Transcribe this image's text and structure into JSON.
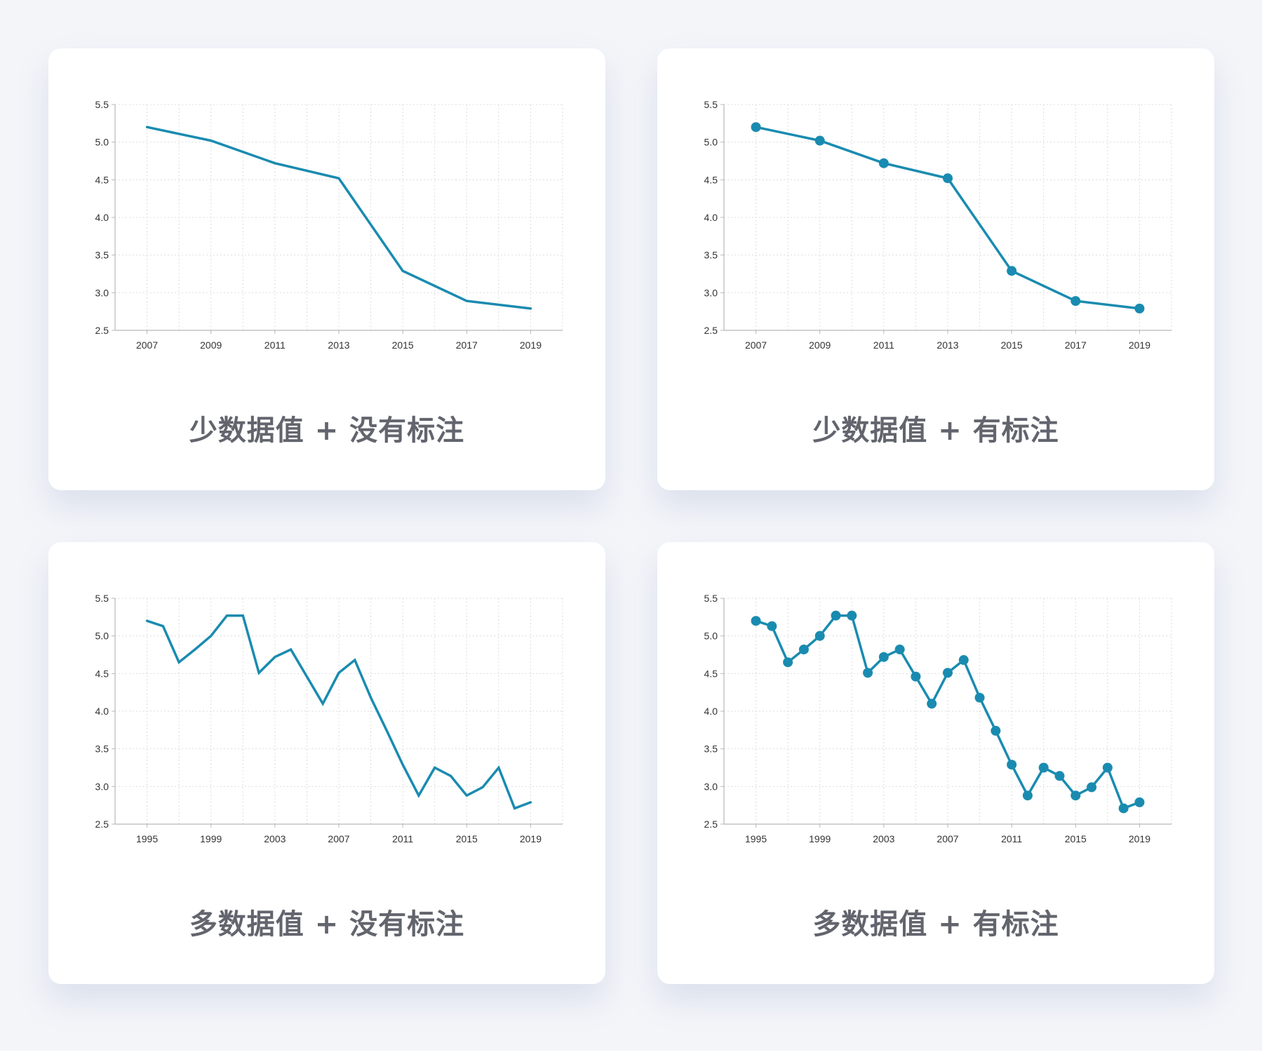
{
  "theme": {
    "line_color": "#1a8bb0",
    "background": "#f3f5f9",
    "card_background": "#ffffff",
    "title_color": "#62656d"
  },
  "panels": [
    {
      "title": "少数据值 + 没有标注"
    },
    {
      "title": "少数据值 + 有标注"
    },
    {
      "title": "多数据值 + 没有标注"
    },
    {
      "title": "多数据值 + 有标注"
    }
  ],
  "chart_data": [
    {
      "type": "line",
      "title": "少数据值 + 没有标注",
      "markers": false,
      "grid": true,
      "x": [
        2007,
        2009,
        2011,
        2013,
        2015,
        2017,
        2019
      ],
      "values": [
        5.2,
        5.02,
        4.72,
        4.52,
        3.29,
        2.89,
        2.79
      ],
      "xlim": [
        2006,
        2020
      ],
      "ylim": [
        2.5,
        5.5
      ],
      "x_ticks": [
        "2007",
        "2009",
        "2011",
        "2013",
        "2015",
        "2017",
        "2019"
      ],
      "y_ticks": [
        "2.5",
        "3.0",
        "3.5",
        "4.0",
        "4.5",
        "5.0",
        "5.5"
      ]
    },
    {
      "type": "line",
      "title": "少数据值 + 有标注",
      "markers": true,
      "grid": true,
      "x": [
        2007,
        2009,
        2011,
        2013,
        2015,
        2017,
        2019
      ],
      "values": [
        5.2,
        5.02,
        4.72,
        4.52,
        3.29,
        2.89,
        2.79
      ],
      "xlim": [
        2006,
        2020
      ],
      "ylim": [
        2.5,
        5.5
      ],
      "x_ticks": [
        "2007",
        "2009",
        "2011",
        "2013",
        "2015",
        "2017",
        "2019"
      ],
      "y_ticks": [
        "2.5",
        "3.0",
        "3.5",
        "4.0",
        "4.5",
        "5.0",
        "5.5"
      ]
    },
    {
      "type": "line",
      "title": "多数据值 + 没有标注",
      "markers": false,
      "grid": true,
      "x": [
        1995,
        1996,
        1997,
        1998,
        1999,
        2000,
        2001,
        2002,
        2003,
        2004,
        2005,
        2006,
        2007,
        2008,
        2009,
        2010,
        2011,
        2012,
        2013,
        2014,
        2015,
        2016,
        2017,
        2018,
        2019
      ],
      "values": [
        5.2,
        5.13,
        4.65,
        4.82,
        5.0,
        5.27,
        5.27,
        4.51,
        4.72,
        4.82,
        4.46,
        4.1,
        4.51,
        4.68,
        4.18,
        3.74,
        3.29,
        2.88,
        3.25,
        3.14,
        2.88,
        2.99,
        3.25,
        2.71,
        2.79
      ],
      "xlim": [
        1993,
        2021
      ],
      "ylim": [
        2.5,
        5.5
      ],
      "x_ticks": [
        "1995",
        "1999",
        "2003",
        "2007",
        "2011",
        "2015",
        "2019"
      ],
      "y_ticks": [
        "2.5",
        "3.0",
        "3.5",
        "4.0",
        "4.5",
        "5.0",
        "5.5"
      ]
    },
    {
      "type": "line",
      "title": "多数据值 + 有标注",
      "markers": true,
      "grid": true,
      "x": [
        1995,
        1996,
        1997,
        1998,
        1999,
        2000,
        2001,
        2002,
        2003,
        2004,
        2005,
        2006,
        2007,
        2008,
        2009,
        2010,
        2011,
        2012,
        2013,
        2014,
        2015,
        2016,
        2017,
        2018,
        2019
      ],
      "values": [
        5.2,
        5.13,
        4.65,
        4.82,
        5.0,
        5.27,
        5.27,
        4.51,
        4.72,
        4.82,
        4.46,
        4.1,
        4.51,
        4.68,
        4.18,
        3.74,
        3.29,
        2.88,
        3.25,
        3.14,
        2.88,
        2.99,
        3.25,
        2.71,
        2.79
      ],
      "xlim": [
        1993,
        2021
      ],
      "ylim": [
        2.5,
        5.5
      ],
      "x_ticks": [
        "1995",
        "1999",
        "2003",
        "2007",
        "2011",
        "2015",
        "2019"
      ],
      "y_ticks": [
        "2.5",
        "3.0",
        "3.5",
        "4.0",
        "4.5",
        "5.0",
        "5.5"
      ]
    }
  ]
}
